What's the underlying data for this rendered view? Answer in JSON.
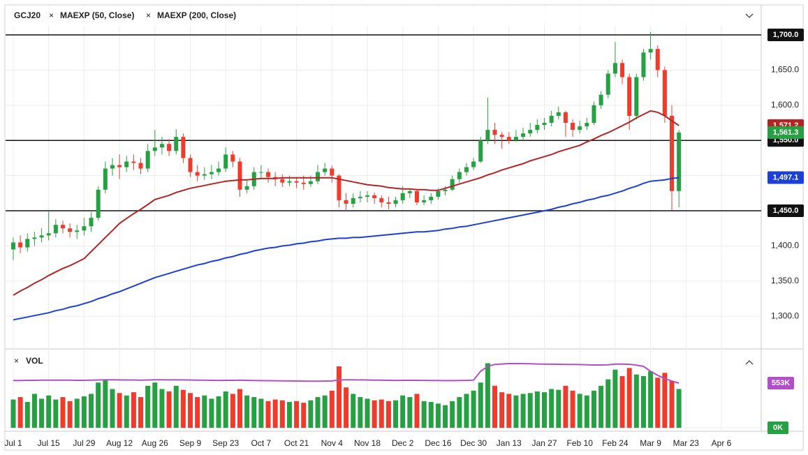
{
  "chart_data": {
    "type": "candlestick",
    "symbol": "GCJ20",
    "categories": [
      "Jul 1",
      null,
      null,
      null,
      null,
      "Jul 15",
      null,
      null,
      null,
      null,
      "Jul 29",
      null,
      null,
      null,
      null,
      "Aug 12",
      null,
      null,
      null,
      null,
      "Aug 26",
      null,
      null,
      null,
      null,
      "Sep 9",
      null,
      null,
      null,
      null,
      "Sep 23",
      null,
      null,
      null,
      null,
      "Oct 7",
      null,
      null,
      null,
      null,
      "Oct 21",
      null,
      null,
      null,
      null,
      "Nov 4",
      null,
      null,
      null,
      null,
      "Nov 18",
      null,
      null,
      null,
      null,
      "Dec 2",
      null,
      null,
      null,
      null,
      "Dec 16",
      null,
      null,
      null,
      null,
      "Dec 30",
      null,
      null,
      null,
      null,
      "Jan 13",
      null,
      null,
      null,
      null,
      "Jan 27",
      null,
      null,
      null,
      null,
      "Feb 10",
      null,
      null,
      null,
      null,
      "Feb 24",
      null,
      null,
      null,
      null,
      "Mar 9",
      null,
      null,
      null,
      null,
      "Mar 23",
      null,
      null,
      null,
      null,
      "Apr 6"
    ],
    "open": [
      1395,
      1405,
      1398,
      1410,
      1412,
      1415,
      1418,
      1430,
      1425,
      1420,
      1422,
      1428,
      1440,
      1480,
      1510,
      1515,
      1512,
      1520,
      1518,
      1510,
      1535,
      1540,
      1545,
      1535,
      1555,
      1525,
      1505,
      1500,
      1502,
      1505,
      1510,
      1530,
      1520,
      1480,
      1485,
      1505,
      1505,
      1498,
      1495,
      1490,
      1492,
      1490,
      1488,
      1492,
      1505,
      1510,
      1500,
      1465,
      1460,
      1468,
      1470,
      1472,
      1468,
      1462,
      1460,
      1465,
      1475,
      1478,
      1462,
      1465,
      1470,
      1478,
      1480,
      1495,
      1505,
      1512,
      1520,
      1550,
      1565,
      1558,
      1555,
      1550,
      1555,
      1560,
      1565,
      1572,
      1575,
      1585,
      1590,
      1575,
      1565,
      1570,
      1575,
      1600,
      1615,
      1645,
      1660,
      1640,
      1585,
      1640,
      1675,
      1680,
      1650,
      1585,
      1478,
      null,
      null,
      null,
      null,
      null,
      null
    ],
    "high": [
      1412,
      1415,
      1418,
      1420,
      1425,
      1450,
      1438,
      1436,
      1432,
      1430,
      1440,
      1448,
      1485,
      1520,
      1525,
      1530,
      1528,
      1530,
      1525,
      1545,
      1565,
      1555,
      1552,
      1566,
      1560,
      1530,
      1515,
      1512,
      1515,
      1520,
      1540,
      1535,
      1525,
      1495,
      1512,
      1515,
      1510,
      1505,
      1502,
      1500,
      1498,
      1500,
      1500,
      1515,
      1518,
      1514,
      1502,
      1475,
      1475,
      1478,
      1478,
      1476,
      1472,
      1470,
      1470,
      1485,
      1482,
      1480,
      1472,
      1475,
      1482,
      1485,
      1500,
      1510,
      1518,
      1525,
      1555,
      1611,
      1575,
      1562,
      1562,
      1565,
      1568,
      1575,
      1580,
      1582,
      1592,
      1598,
      1592,
      1580,
      1578,
      1582,
      1605,
      1620,
      1650,
      1690,
      1665,
      1645,
      1645,
      1680,
      1704,
      1685,
      1655,
      1600,
      1565,
      null,
      null,
      null,
      null,
      null,
      null
    ],
    "low": [
      1380,
      1390,
      1392,
      1400,
      1405,
      1408,
      1412,
      1418,
      1412,
      1410,
      1415,
      1420,
      1436,
      1475,
      1500,
      1495,
      1505,
      1508,
      1502,
      1505,
      1528,
      1530,
      1528,
      1530,
      1518,
      1498,
      1492,
      1494,
      1495,
      1500,
      1505,
      1512,
      1470,
      1475,
      1480,
      1495,
      1490,
      1485,
      1484,
      1485,
      1482,
      1480,
      1484,
      1488,
      1500,
      1490,
      1455,
      1450,
      1455,
      1462,
      1462,
      1460,
      1455,
      1452,
      1455,
      1460,
      1468,
      1458,
      1458,
      1460,
      1466,
      1472,
      1478,
      1490,
      1500,
      1508,
      1518,
      1545,
      1545,
      1538,
      1545,
      1548,
      1550,
      1555,
      1560,
      1565,
      1570,
      1580,
      1555,
      1555,
      1560,
      1565,
      1572,
      1595,
      1610,
      1640,
      1630,
      1565,
      1580,
      1635,
      1665,
      1640,
      1575,
      1451,
      1455,
      null,
      null,
      null,
      null,
      null,
      null
    ],
    "close": [
      1405,
      1398,
      1410,
      1412,
      1415,
      1418,
      1430,
      1425,
      1420,
      1422,
      1428,
      1440,
      1480,
      1510,
      1515,
      1512,
      1520,
      1518,
      1510,
      1535,
      1540,
      1545,
      1535,
      1555,
      1525,
      1505,
      1500,
      1502,
      1505,
      1510,
      1530,
      1520,
      1480,
      1485,
      1505,
      1505,
      1498,
      1495,
      1490,
      1492,
      1490,
      1488,
      1492,
      1505,
      1510,
      1500,
      1465,
      1460,
      1468,
      1470,
      1472,
      1468,
      1462,
      1460,
      1465,
      1475,
      1478,
      1462,
      1465,
      1470,
      1478,
      1480,
      1495,
      1505,
      1512,
      1520,
      1550,
      1565,
      1558,
      1555,
      1550,
      1555,
      1560,
      1565,
      1572,
      1575,
      1585,
      1590,
      1575,
      1565,
      1570,
      1575,
      1600,
      1615,
      1645,
      1660,
      1640,
      1585,
      1640,
      1675,
      1680,
      1650,
      1585,
      1478,
      1561.3,
      null,
      null,
      null,
      null,
      null,
      null
    ],
    "close_label": "1,561.3",
    "up_color": "#26a042",
    "down_color": "#ee3b2b",
    "ylim": [
      1255.6,
      1741.7
    ],
    "yticks": [
      {
        "value": 1300,
        "label": "1,300.0"
      },
      {
        "value": 1350,
        "label": "1,350.0"
      },
      {
        "value": 1400,
        "label": "1,400.0"
      },
      {
        "value": 1450,
        "label": "1,450.0"
      },
      {
        "value": 1500,
        "label": "1,500.0"
      },
      {
        "value": 1550,
        "label": "1,550.0"
      },
      {
        "value": 1600,
        "label": "1,600.0"
      },
      {
        "value": 1650,
        "label": "1,650.0"
      }
    ],
    "hlines": [
      {
        "value": 1700,
        "label": "1,700.0"
      },
      {
        "value": 1550,
        "label": "1,550.0"
      },
      {
        "value": 1450,
        "label": "1,450.0"
      }
    ],
    "series": [
      {
        "name": "MAEXP (50, Close)",
        "color": "#b32424",
        "last_label": "1,571.2",
        "values": [
          1330,
          1336,
          1341,
          1347,
          1352,
          1358,
          1363,
          1368,
          1372,
          1377,
          1382,
          1392,
          1402,
          1412,
          1422,
          1432,
          1439,
          1446,
          1452,
          1459,
          1466,
          1469,
          1472,
          1476,
          1479,
          1482,
          1484,
          1486,
          1488,
          1490,
          1492,
          1493,
          1494,
          1494,
          1495,
          1496,
          1496,
          1496,
          1497,
          1497,
          1497,
          1497,
          1497,
          1497,
          1497,
          1497,
          1495,
          1493,
          1491,
          1489,
          1487,
          1486,
          1485,
          1483,
          1482,
          1481,
          1481,
          1480,
          1480,
          1479,
          1479,
          1482,
          1485,
          1488,
          1491,
          1494,
          1497,
          1501,
          1504,
          1508,
          1511,
          1514,
          1517,
          1521,
          1524,
          1527,
          1530,
          1534,
          1537,
          1540,
          1543,
          1548,
          1552,
          1557,
          1561,
          1566,
          1571,
          1576,
          1582,
          1587,
          1592,
          1590,
          1585,
          1578,
          1571.2,
          null,
          null,
          null,
          null,
          null,
          null
        ]
      },
      {
        "name": "MAEXP (200, Close)",
        "color": "#1c3fd6",
        "last_label": "1,497.1",
        "values": [
          1295,
          1297,
          1299,
          1301,
          1303,
          1305,
          1308,
          1310,
          1313,
          1315,
          1318,
          1321,
          1325,
          1328,
          1332,
          1335,
          1339,
          1343,
          1347,
          1351,
          1355,
          1358,
          1361,
          1364,
          1367,
          1370,
          1373,
          1375,
          1378,
          1380,
          1383,
          1385,
          1388,
          1390,
          1393,
          1395,
          1397,
          1398,
          1400,
          1401,
          1403,
          1404,
          1406,
          1407,
          1409,
          1410,
          1411,
          1411,
          1412,
          1412,
          1413,
          1414,
          1415,
          1416,
          1417,
          1418,
          1419,
          1420,
          1420,
          1421,
          1422,
          1424,
          1425,
          1427,
          1428,
          1430,
          1432,
          1434,
          1436,
          1438,
          1440,
          1442,
          1444,
          1446,
          1448,
          1450,
          1452,
          1455,
          1457,
          1460,
          1462,
          1465,
          1467,
          1470,
          1472,
          1475,
          1478,
          1482,
          1485,
          1489,
          1492,
          1493,
          1494,
          1496,
          1497.1,
          null,
          null,
          null,
          null,
          null,
          null
        ]
      }
    ],
    "volume": {
      "name": "VOL",
      "values": [
        350,
        380,
        320,
        420,
        360,
        400,
        350,
        380,
        330,
        360,
        390,
        420,
        560,
        600,
        480,
        430,
        400,
        440,
        380,
        520,
        560,
        480,
        450,
        520,
        470,
        430,
        380,
        400,
        360,
        390,
        450,
        420,
        480,
        400,
        380,
        360,
        330,
        350,
        340,
        320,
        330,
        310,
        340,
        380,
        400,
        460,
        760,
        500,
        420,
        380,
        360,
        340,
        350,
        330,
        340,
        400,
        380,
        420,
        330,
        320,
        300,
        280,
        330,
        380,
        420,
        460,
        560,
        800,
        520,
        440,
        420,
        400,
        420,
        430,
        450,
        440,
        480,
        470,
        520,
        460,
        420,
        400,
        460,
        520,
        600,
        720,
        640,
        740,
        660,
        640,
        700,
        620,
        680,
        580,
        480,
        null,
        null,
        null,
        null,
        null,
        null
      ],
      "ylim": [
        0,
        890
      ],
      "yticks": [
        {
          "value": 0,
          "label": "0K"
        }
      ],
      "ma": {
        "color": "#b24fc8",
        "last_label": "553K",
        "values": [
          585,
          586,
          588,
          588,
          589,
          590,
          590,
          590,
          589,
          588,
          588,
          590,
          592,
          594,
          594,
          593,
          592,
          592,
          590,
          592,
          594,
          594,
          593,
          594,
          593,
          592,
          590,
          589,
          588,
          587,
          588,
          588,
          589,
          588,
          586,
          584,
          583,
          582,
          581,
          580,
          579,
          578,
          577,
          577,
          578,
          580,
          592,
          594,
          594,
          593,
          592,
          590,
          589,
          588,
          587,
          588,
          588,
          588,
          587,
          586,
          585,
          584,
          584,
          585,
          587,
          590,
          700,
          760,
          785,
          790,
          795,
          795,
          794,
          792,
          790,
          788,
          787,
          786,
          785,
          785,
          783,
          780,
          778,
          778,
          780,
          790,
          788,
          786,
          775,
          760,
          700,
          650,
          610,
          580,
          553,
          null,
          null,
          null,
          null,
          null,
          null
        ]
      }
    },
    "grid": true
  }
}
